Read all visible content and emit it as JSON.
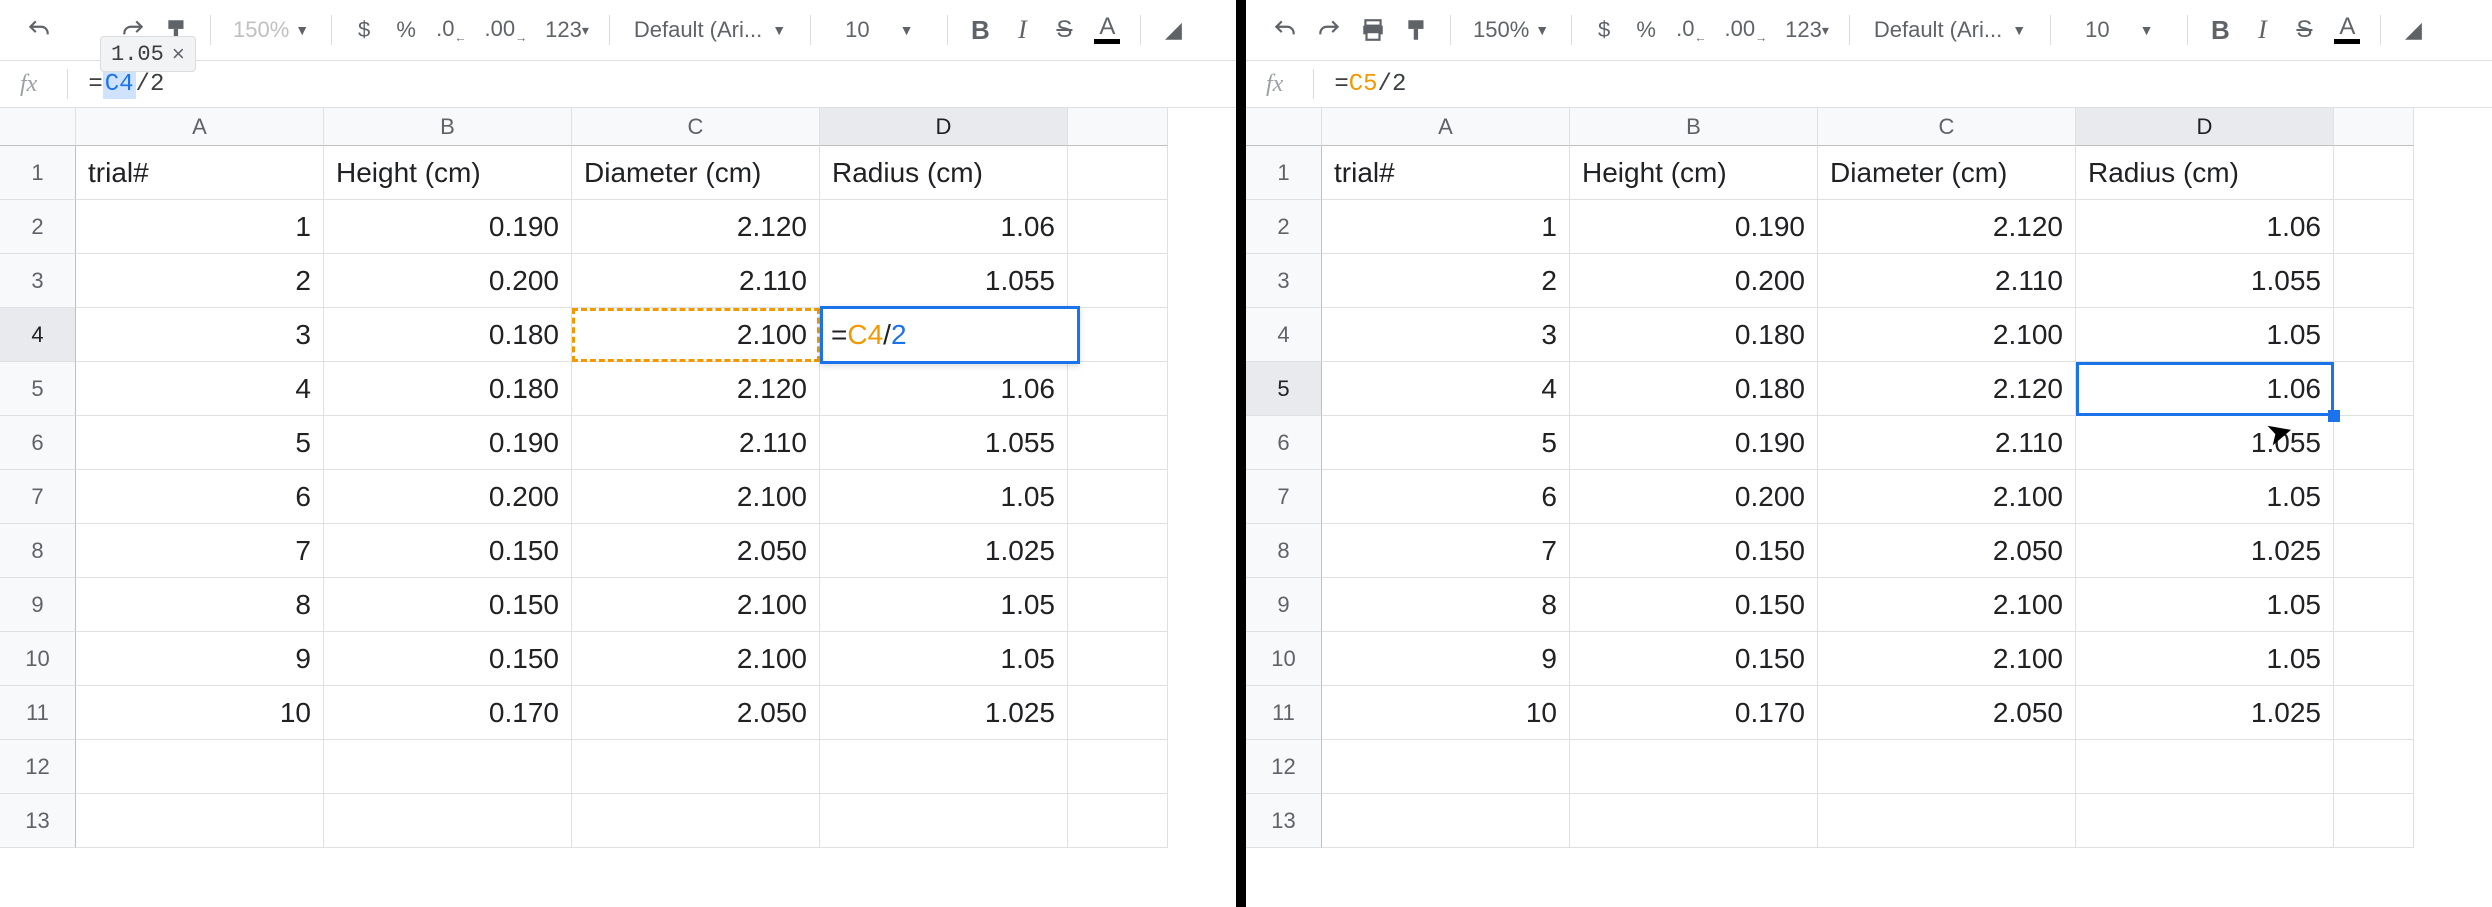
{
  "toolbar": {
    "zoom": "150%",
    "font": "Default (Ari...",
    "font_size": "10",
    "format_123": "123"
  },
  "left": {
    "result_tip": "1.05",
    "formula_ref": "C4",
    "formula_rest": "/2",
    "col_widths": {
      "A": 248,
      "B": 248,
      "C": 248,
      "D": 248,
      "extra": 100
    },
    "edit_text_ref": "C4",
    "edit_text_op": "/",
    "edit_text_num": "2"
  },
  "right": {
    "formula_ref": "C5",
    "formula_rest": "/2",
    "col_widths": {
      "A": 248,
      "B": 248,
      "C": 258,
      "D": 258,
      "extra": 80
    }
  },
  "headers": [
    "trial#",
    "Height (cm)",
    "Diameter (cm)",
    "Radius (cm)"
  ],
  "col_labels": [
    "A",
    "B",
    "C",
    "D"
  ],
  "rows": [
    {
      "n": "1",
      "a": "1",
      "b": "0.190",
      "c": "2.120",
      "d": "1.06"
    },
    {
      "n": "2",
      "a": "2",
      "b": "0.200",
      "c": "2.110",
      "d": "1.055"
    },
    {
      "n": "3",
      "a": "3",
      "b": "0.180",
      "c": "2.100",
      "d": "1.05"
    },
    {
      "n": "4",
      "a": "4",
      "b": "0.180",
      "c": "2.120",
      "d": "1.06"
    },
    {
      "n": "5",
      "a": "5",
      "b": "0.190",
      "c": "2.110",
      "d": "1.055"
    },
    {
      "n": "6",
      "a": "6",
      "b": "0.200",
      "c": "2.100",
      "d": "1.05"
    },
    {
      "n": "7",
      "a": "7",
      "b": "0.150",
      "c": "2.050",
      "d": "1.025"
    },
    {
      "n": "8",
      "a": "8",
      "b": "0.150",
      "c": "2.100",
      "d": "1.05"
    },
    {
      "n": "9",
      "a": "9",
      "b": "0.150",
      "c": "2.100",
      "d": "1.05"
    },
    {
      "n": "10",
      "a": "10",
      "b": "0.170",
      "c": "2.050",
      "d": "1.025"
    }
  ],
  "empty_rows": [
    "12",
    "13"
  ],
  "colors": {
    "blue": "#1a73e8",
    "orange": "#f29900",
    "grid": "#e0e0e0",
    "header_bg": "#f8f9fa"
  }
}
